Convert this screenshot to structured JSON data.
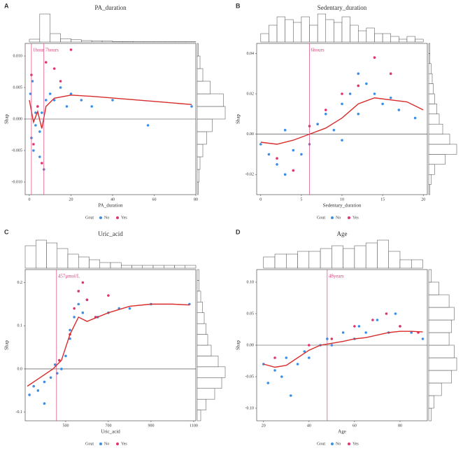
{
  "chart_data": [
    {
      "type": "scatter",
      "panel": "A",
      "title": "PA_duration",
      "xlabel": "PA_duration",
      "ylabel": "Shap",
      "legend_title": "Gout",
      "xlim": [
        -2,
        80
      ],
      "ylim": [
        -0.012,
        0.012
      ],
      "xticks": [
        0,
        20,
        40,
        60,
        80
      ],
      "yticks": [
        {
          "value": -0.01,
          "label": "-0.010"
        },
        {
          "value": -0.005,
          "label": "-0.005"
        },
        {
          "value": 0,
          "label": "0.000"
        },
        {
          "value": 0.005,
          "label": "0.005"
        },
        {
          "value": 0.01,
          "label": "0.010"
        }
      ],
      "vlines": [
        {
          "value": 1,
          "label": "1hour"
        },
        {
          "value": 7,
          "label": "7hours"
        }
      ],
      "series": [
        {
          "name": "No",
          "color": "#3b8fe6",
          "x": [
            0.5,
            1,
            1.5,
            2,
            3,
            4,
            5,
            6,
            7,
            8,
            10,
            12,
            15,
            18,
            20,
            25,
            30,
            40,
            57,
            78,
            3,
            5
          ],
          "values": [
            0.004,
            -0.003,
            0.006,
            -0.005,
            -0.001,
            0.002,
            -0.006,
            0.001,
            -0.008,
            0.003,
            0.004,
            0.003,
            0.005,
            0.002,
            0.004,
            0.003,
            0.002,
            0.003,
            -0.001,
            0.002,
            0.001,
            -0.002
          ]
        },
        {
          "name": "Yes",
          "color": "#e3336d",
          "x": [
            1,
            2,
            4,
            6,
            8,
            12,
            15,
            20
          ],
          "values": [
            0.007,
            -0.004,
            0.002,
            -0.007,
            0.009,
            0.008,
            0.006,
            0.011
          ]
        }
      ],
      "trend": {
        "color": "#d92b2b",
        "x": [
          0,
          2,
          4,
          6,
          8,
          12,
          20,
          30,
          45,
          60,
          78
        ],
        "values": [
          0.003,
          -0.0005,
          0.0012,
          -0.0015,
          0.002,
          0.0033,
          0.0038,
          0.0036,
          0.0032,
          0.0028,
          0.0023
        ]
      },
      "top_hist": {
        "bins": [
          0,
          5,
          10,
          15,
          20,
          25,
          30,
          35,
          40,
          45,
          50,
          55,
          60,
          65,
          70,
          75,
          80
        ],
        "counts": [
          10,
          100,
          30,
          12,
          8,
          5,
          4,
          3,
          2,
          2,
          1,
          1,
          1,
          1,
          1,
          1
        ]
      },
      "right_hist": {
        "bins": [
          -0.012,
          -0.01,
          -0.008,
          -0.006,
          -0.004,
          -0.002,
          0,
          0.002,
          0.004,
          0.006,
          0.008,
          0.01,
          0.012
        ],
        "counts": [
          1,
          2,
          3,
          6,
          10,
          16,
          30,
          28,
          14,
          6,
          3,
          1
        ]
      }
    },
    {
      "type": "scatter",
      "panel": "B",
      "title": "Sedentary_duration",
      "xlabel": "Sedentary_duration",
      "ylabel": "Shap",
      "legend_title": "Gout",
      "xlim": [
        -0.5,
        20.5
      ],
      "ylim": [
        -0.03,
        0.045
      ],
      "xticks": [
        0,
        5,
        10,
        15,
        20
      ],
      "yticks": [
        {
          "value": -0.02,
          "label": "-0.02"
        },
        {
          "value": 0,
          "label": "0.00"
        },
        {
          "value": 0.02,
          "label": "0.02"
        },
        {
          "value": 0.04,
          "label": "0.04"
        }
      ],
      "vlines": [
        {
          "value": 6,
          "label": "6hours"
        }
      ],
      "series": [
        {
          "name": "No",
          "color": "#3b8fe6",
          "x": [
            0,
            1,
            2,
            3,
            3,
            4,
            5,
            6,
            7,
            8,
            9,
            10,
            10,
            11,
            12,
            12,
            13,
            14,
            15,
            16,
            17,
            19
          ],
          "values": [
            -0.005,
            -0.01,
            -0.015,
            -0.02,
            0.002,
            -0.008,
            -0.01,
            -0.005,
            0.005,
            0.01,
            0.002,
            0.015,
            -0.003,
            0.02,
            0.03,
            0.01,
            0.025,
            0.02,
            0.015,
            0.018,
            0.012,
            0.008
          ]
        },
        {
          "name": "Yes",
          "color": "#e3336d",
          "x": [
            2,
            4,
            6,
            8,
            10,
            12,
            14,
            16
          ],
          "values": [
            -0.012,
            -0.018,
            0.004,
            0.012,
            0.02,
            0.024,
            0.038,
            0.03
          ]
        }
      ],
      "trend": {
        "color": "#d92b2b",
        "x": [
          0,
          2,
          4,
          6,
          8,
          10,
          12,
          14,
          16,
          18,
          20
        ],
        "values": [
          -0.004,
          -0.005,
          -0.003,
          0,
          0.003,
          0.008,
          0.015,
          0.018,
          0.017,
          0.016,
          0.012
        ]
      },
      "top_hist": {
        "bins": [
          0,
          1,
          2,
          3,
          4,
          5,
          6,
          7,
          8,
          9,
          10,
          11,
          12,
          13,
          14,
          15,
          16,
          17,
          18,
          19,
          20
        ],
        "counts": [
          3,
          6,
          9,
          8,
          7,
          9,
          6,
          10,
          8,
          7,
          9,
          6,
          4,
          5,
          3,
          3,
          2,
          1,
          2,
          1
        ]
      },
      "right_hist": {
        "bins": [
          -0.03,
          -0.025,
          -0.02,
          -0.015,
          -0.01,
          -0.005,
          0,
          0.005,
          0.01,
          0.015,
          0.02,
          0.025,
          0.03,
          0.035,
          0.04,
          0.045
        ],
        "counts": [
          1,
          2,
          5,
          14,
          24,
          18,
          12,
          9,
          7,
          5,
          4,
          3,
          2,
          1,
          1
        ]
      }
    },
    {
      "type": "scatter",
      "panel": "C",
      "title": "Uric_acid",
      "xlabel": "Uric_acid",
      "ylabel": "Shap",
      "legend_title": "Gout",
      "xlim": [
        310,
        1110
      ],
      "ylim": [
        -0.12,
        0.23
      ],
      "xticks": [
        500,
        700,
        900,
        1100
      ],
      "yticks": [
        {
          "value": -0.1,
          "label": "-0.1"
        },
        {
          "value": 0,
          "label": "0.0"
        },
        {
          "value": 0.1,
          "label": "0.1"
        },
        {
          "value": 0.2,
          "label": "0.2"
        }
      ],
      "vlines": [
        {
          "value": 457,
          "label": "457μmol/L"
        }
      ],
      "series": [
        {
          "name": "No",
          "color": "#3b8fe6",
          "x": [
            330,
            350,
            370,
            400,
            430,
            460,
            480,
            500,
            520,
            540,
            560,
            580,
            600,
            650,
            700,
            750,
            800,
            900,
            1080,
            400,
            450,
            520
          ],
          "values": [
            -0.06,
            -0.04,
            -0.05,
            -0.03,
            -0.02,
            -0.01,
            0,
            0.03,
            0.07,
            0.12,
            0.15,
            0.13,
            0.16,
            0.12,
            0.13,
            0.14,
            0.14,
            0.15,
            0.15,
            -0.08,
            0.01,
            0.09
          ]
        },
        {
          "name": "Yes",
          "color": "#e3336d",
          "x": [
            470,
            520,
            540,
            560,
            580,
            600,
            640,
            700
          ],
          "values": [
            0.02,
            0.08,
            0.14,
            0.18,
            0.2,
            0.16,
            0.12,
            0.17
          ]
        }
      ],
      "trend": {
        "color": "#d92b2b",
        "x": [
          320,
          380,
          440,
          480,
          520,
          560,
          600,
          700,
          800,
          900,
          1000,
          1080
        ],
        "values": [
          -0.04,
          -0.02,
          0,
          0.02,
          0.08,
          0.12,
          0.11,
          0.13,
          0.145,
          0.15,
          0.15,
          0.148
        ]
      },
      "top_hist": {
        "bins": [
          310,
          360,
          410,
          460,
          510,
          560,
          610,
          660,
          710,
          760,
          810,
          860,
          910,
          960,
          1010,
          1060,
          1110
        ],
        "counts": [
          8,
          10,
          9,
          7,
          5,
          4,
          3,
          2,
          2,
          1,
          1,
          1,
          1,
          1,
          1,
          1
        ]
      },
      "right_hist": {
        "bins": [
          -0.12,
          -0.095,
          -0.07,
          -0.045,
          -0.02,
          0.005,
          0.03,
          0.055,
          0.08,
          0.105,
          0.13,
          0.155,
          0.18,
          0.205,
          0.23
        ],
        "counts": [
          2,
          5,
          10,
          14,
          16,
          12,
          8,
          6,
          5,
          4,
          3,
          2,
          1,
          1
        ]
      }
    },
    {
      "type": "scatter",
      "panel": "D",
      "title": "Age",
      "xlabel": "Age",
      "ylabel": "Shap",
      "legend_title": "Gout",
      "xlim": [
        17,
        92
      ],
      "ylim": [
        -0.12,
        0.12
      ],
      "xticks": [
        20,
        40,
        60,
        80
      ],
      "yticks": [
        {
          "value": -0.1,
          "label": "-0.10"
        },
        {
          "value": -0.05,
          "label": "-0.05"
        },
        {
          "value": 0,
          "label": "0.00"
        },
        {
          "value": 0.05,
          "label": "0.05"
        },
        {
          "value": 0.1,
          "label": "0.10"
        }
      ],
      "vlines": [
        {
          "value": 48,
          "label": "48years"
        }
      ],
      "series": [
        {
          "name": "No",
          "color": "#3b8fe6",
          "x": [
            20,
            22,
            25,
            28,
            30,
            32,
            35,
            38,
            40,
            45,
            48,
            50,
            55,
            60,
            62,
            65,
            70,
            75,
            78,
            80,
            85,
            90
          ],
          "values": [
            -0.03,
            -0.06,
            -0.04,
            -0.05,
            -0.02,
            -0.08,
            -0.03,
            -0.01,
            -0.02,
            0,
            0.01,
            0,
            0.02,
            0.01,
            0.03,
            0.02,
            0.04,
            0.02,
            0.05,
            0.03,
            0.02,
            0.01
          ]
        },
        {
          "name": "Yes",
          "color": "#e3336d",
          "x": [
            25,
            40,
            50,
            60,
            68,
            74,
            80,
            88
          ],
          "values": [
            -0.02,
            0,
            0.01,
            0.03,
            0.04,
            0.05,
            0.03,
            0.02
          ]
        }
      ],
      "trend": {
        "color": "#d92b2b",
        "x": [
          20,
          25,
          30,
          35,
          40,
          45,
          50,
          55,
          60,
          65,
          70,
          75,
          80,
          85,
          90
        ],
        "values": [
          -0.03,
          -0.035,
          -0.032,
          -0.02,
          -0.008,
          0,
          0.003,
          0.006,
          0.01,
          0.012,
          0.016,
          0.02,
          0.022,
          0.022,
          0.021
        ]
      },
      "top_hist": {
        "bins": [
          20,
          25,
          30,
          35,
          40,
          45,
          50,
          55,
          60,
          65,
          70,
          75,
          80,
          85,
          90
        ],
        "counts": [
          4,
          5,
          5,
          6,
          6,
          7,
          8,
          7,
          8,
          9,
          10,
          6,
          3,
          3
        ]
      },
      "right_hist": {
        "bins": [
          -0.12,
          -0.1,
          -0.08,
          -0.06,
          -0.04,
          -0.02,
          0,
          0.02,
          0.04,
          0.06,
          0.08,
          0.1,
          0.12
        ],
        "counts": [
          1,
          2,
          5,
          9,
          11,
          10,
          8,
          9,
          10,
          8,
          4,
          1
        ]
      }
    }
  ]
}
